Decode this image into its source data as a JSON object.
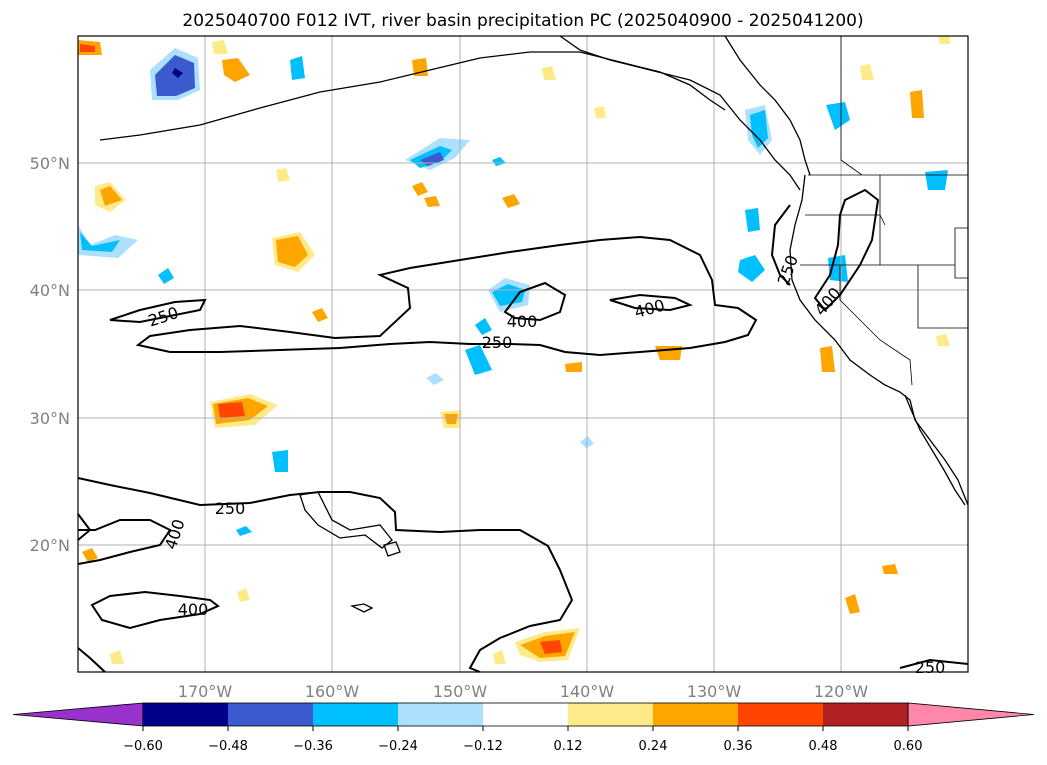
{
  "title": "2025040700 F012 IVT, river basin precipitation PC (2025040900 - 2025041200)",
  "lat_labels": [
    "50°N",
    "40°N",
    "30°N",
    "20°N"
  ],
  "lon_labels": [
    "170°W",
    "160°W",
    "150°W",
    "140°W",
    "130°W",
    "120°W"
  ],
  "contour_labels": [
    "250",
    "400",
    "250",
    "400",
    "400",
    "250",
    "250",
    "400",
    "400",
    "250"
  ],
  "colorbar": {
    "ticks": [
      "−0.60",
      "−0.48",
      "−0.36",
      "−0.24",
      "−0.12",
      "0.12",
      "0.24",
      "0.36",
      "0.48",
      "0.60"
    ],
    "colors": [
      "#9932CC",
      "#00008B",
      "#3A5ACD",
      "#00BFFF",
      "#ADDFFF",
      "#FFFFFF",
      "#FFEA8A",
      "#FFA500",
      "#FF4500",
      "#B22222",
      "#FF88AA"
    ]
  }
}
